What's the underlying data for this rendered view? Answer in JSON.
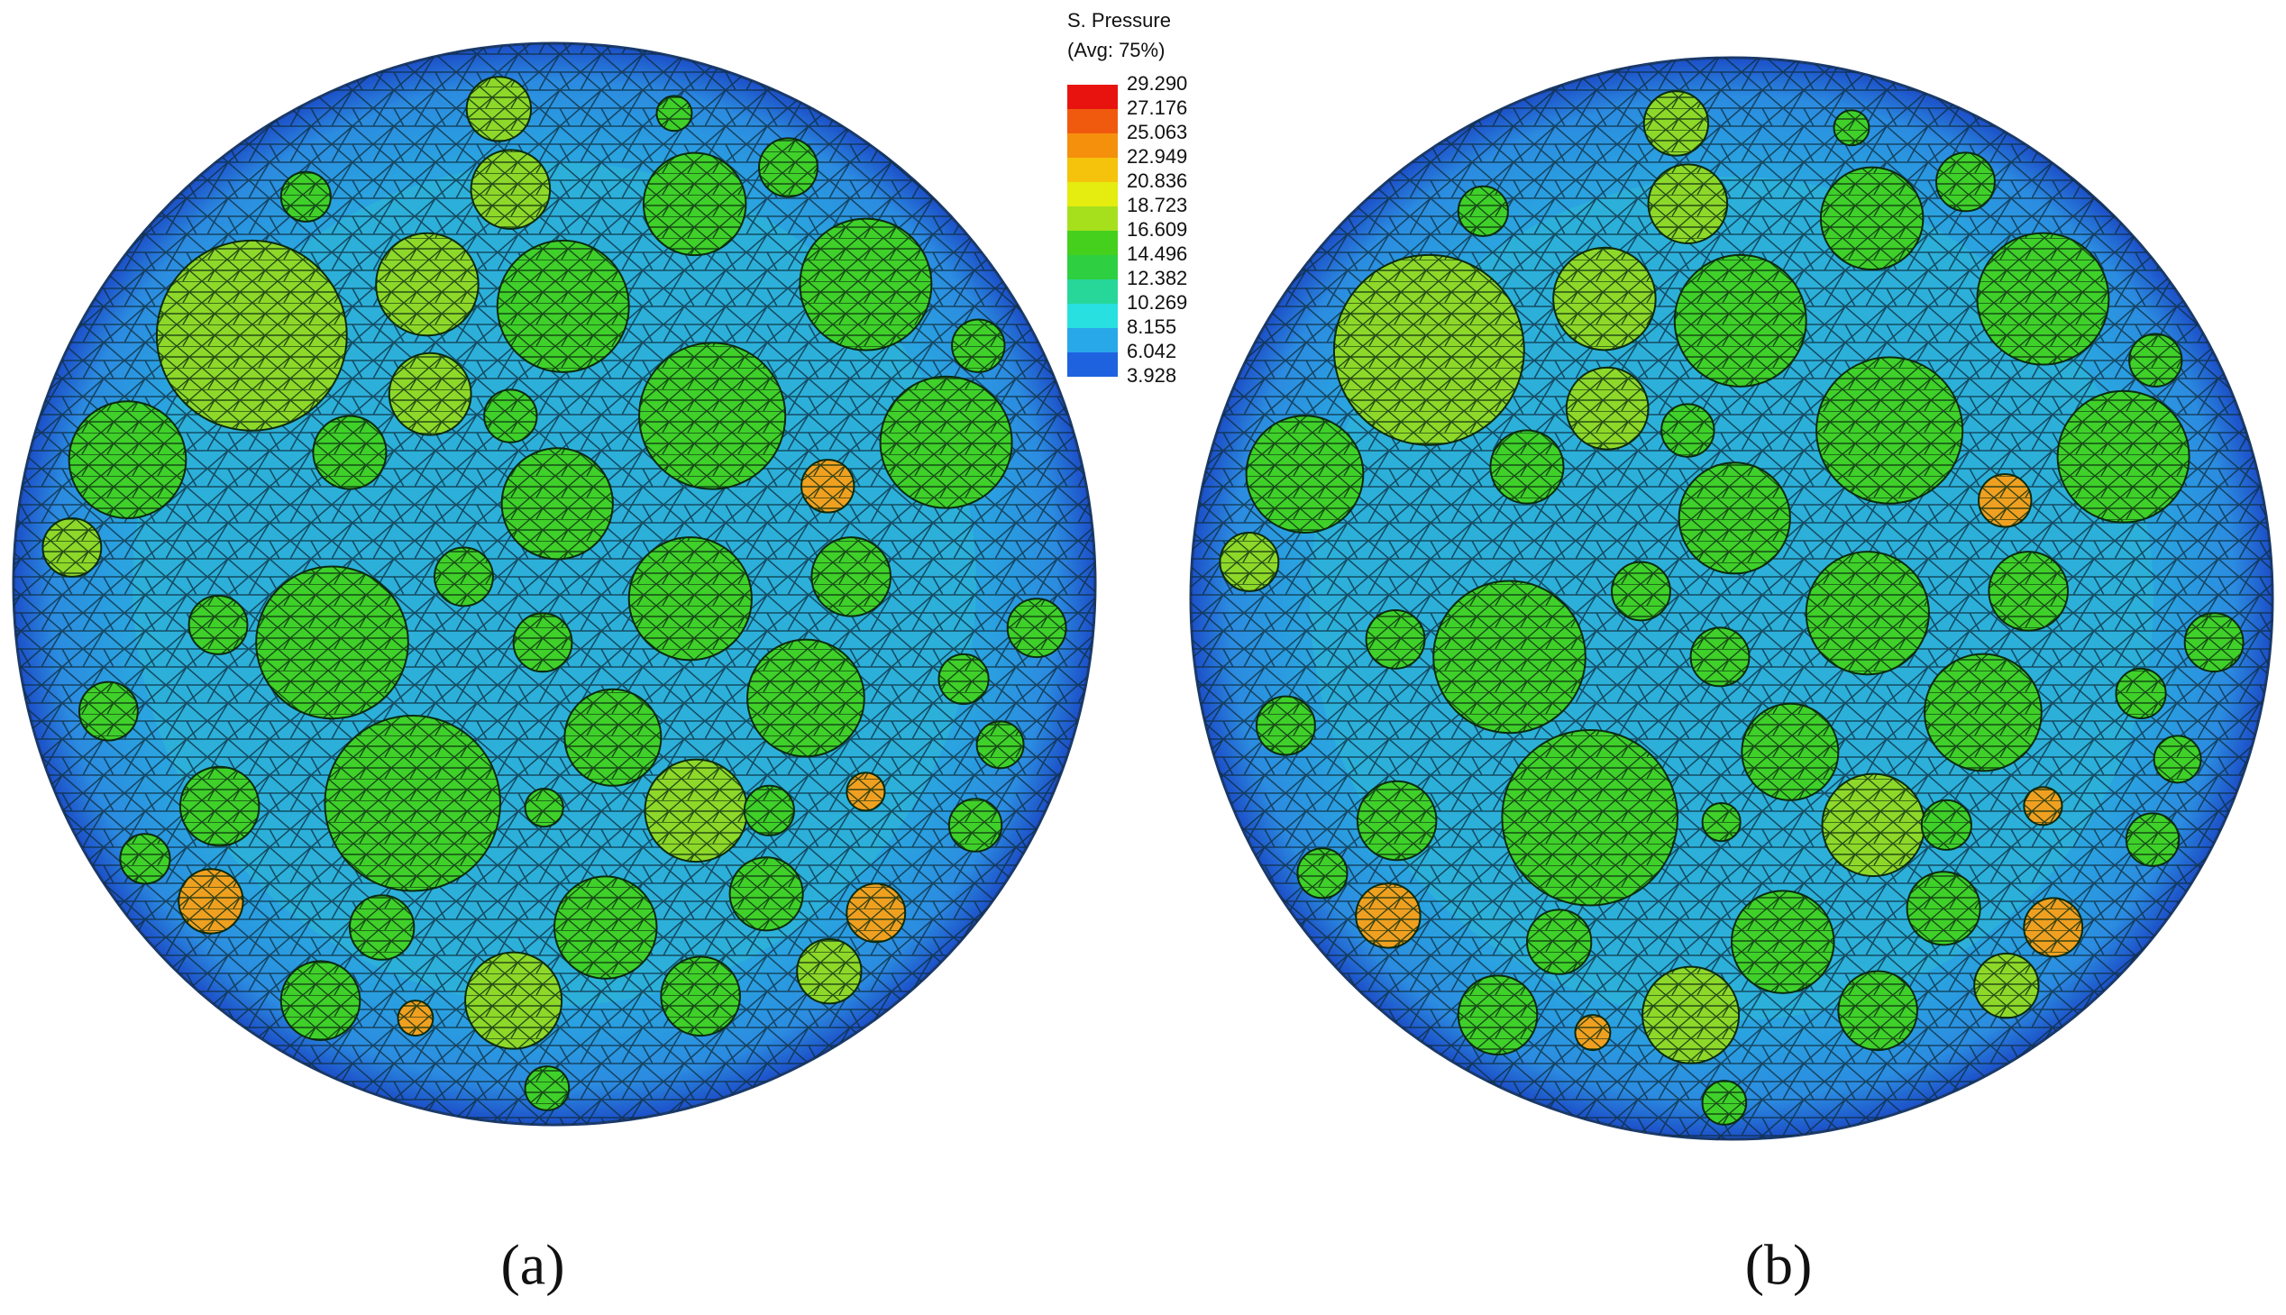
{
  "legend": {
    "title": "S. Pressure",
    "subtitle": "(Avg: 75%)",
    "labels": [
      "29.290",
      "27.176",
      "25.063",
      "22.949",
      "20.836",
      "18.723",
      "16.609",
      "14.496",
      "12.382",
      "10.269",
      "8.155",
      "6.042",
      "3.928"
    ]
  },
  "panels": [
    {
      "caption": "(a)"
    },
    {
      "caption": "(b)"
    }
  ]
}
